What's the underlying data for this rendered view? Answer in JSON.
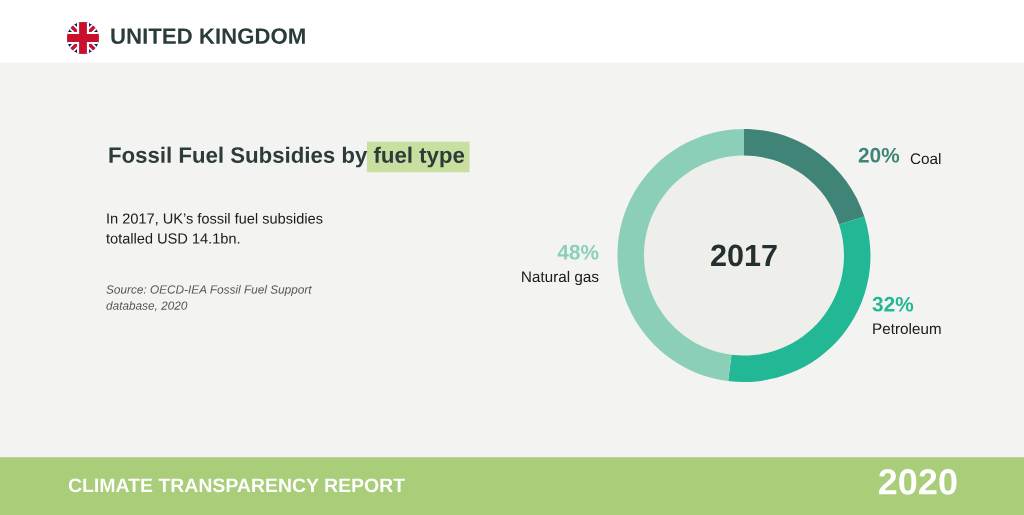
{
  "chart_data": {
    "type": "donut",
    "title": "Fossil Fuel Subsidies by fuel type",
    "categories": [
      "Coal",
      "Petroleum",
      "Natural gas"
    ],
    "values": [
      20,
      32,
      48
    ],
    "colors": [
      "#3f8476",
      "#22b795",
      "#8ccfb8"
    ],
    "value_labels": [
      "20%",
      "32%",
      "48%"
    ],
    "annotations": [
      "UNITED KINGDOM",
      "In 2017, UK’s fossil fuel subsidies\ntotalled USD 14.1bn.",
      "Source: OECD-IEA Fossil Fuel Support\ndatabase, 2020",
      "2017",
      "CLIMATE TRANSPARENCY REPORT",
      "2020"
    ]
  }
}
